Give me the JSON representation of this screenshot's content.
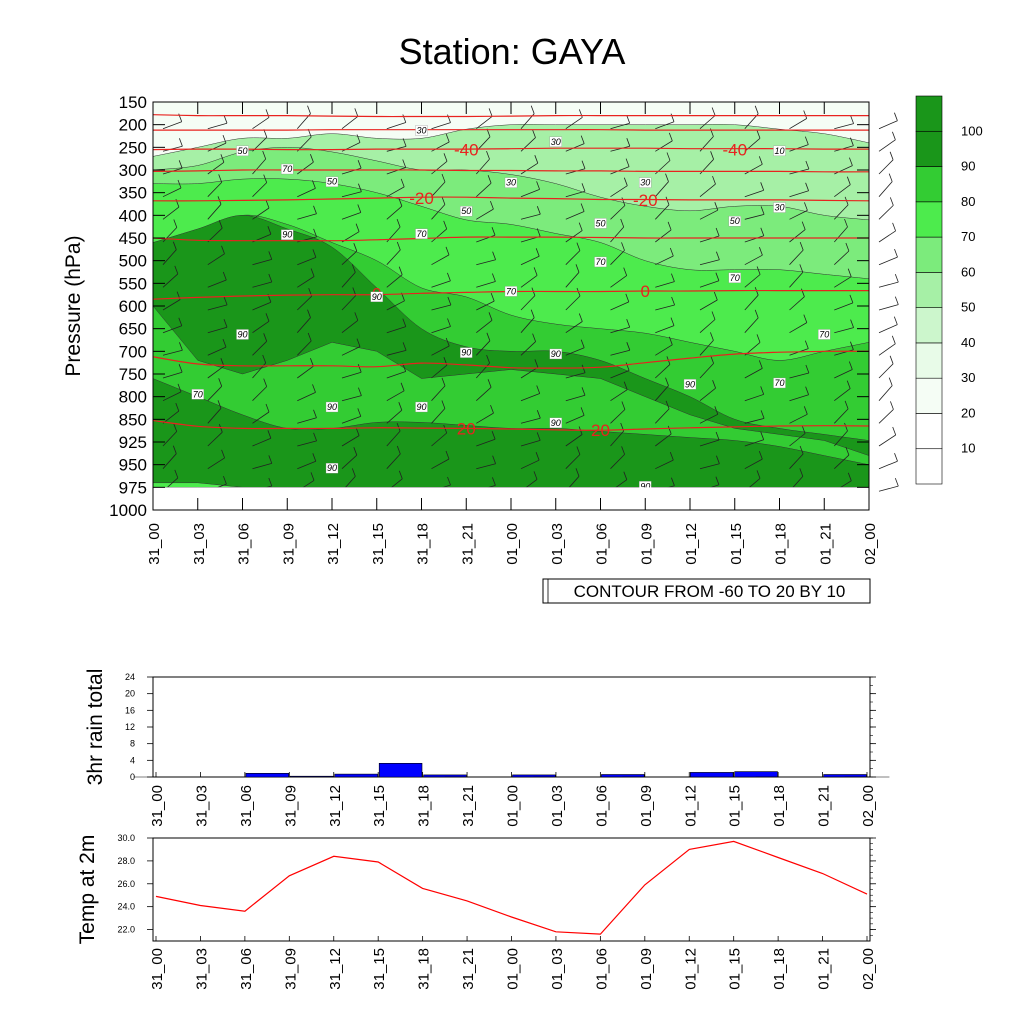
{
  "title": "Station: GAYA",
  "colors": {
    "temp_contour": "#e8231f",
    "rain_bar": "#0000ff",
    "temp_line": "#ff0000",
    "rh_levels": [
      "#ffffff",
      "#ffffff",
      "#f5fdf5",
      "#e8fbe8",
      "#ccf6cc",
      "#a6f0a6",
      "#7ceb7c",
      "#4deb4d",
      "#33cc33",
      "#1a961a"
    ]
  },
  "time_labels": [
    "31_00",
    "31_03",
    "31_06",
    "31_09",
    "31_12",
    "31_15",
    "31_18",
    "31_21",
    "01_00",
    "01_03",
    "01_06",
    "01_09",
    "01_12",
    "01_15",
    "01_18",
    "01_21",
    "02_00"
  ],
  "chart_data": [
    {
      "type": "heatmap",
      "name": "pressure-time cross section",
      "ylabel": "Pressure (hPa)",
      "pressure_levels": [
        150,
        200,
        250,
        300,
        350,
        400,
        450,
        500,
        550,
        600,
        650,
        700,
        750,
        800,
        850,
        925,
        950,
        975,
        1000
      ],
      "x": [
        "31_00",
        "31_03",
        "31_06",
        "31_09",
        "31_12",
        "31_15",
        "31_18",
        "31_21",
        "01_00",
        "01_03",
        "01_06",
        "01_09",
        "01_12",
        "01_15",
        "01_18",
        "01_21",
        "02_00"
      ],
      "fill_variable": "relative humidity (%)",
      "colorbar": {
        "levels": [
          10,
          20,
          30,
          40,
          50,
          60,
          70,
          80,
          90,
          100
        ]
      },
      "rh_regions": [
        {
          "level": 60,
          "top": [
            270,
            250,
            230,
            230,
            220,
            230,
            230,
            210,
            200,
            200,
            200,
            200,
            200,
            200,
            210,
            220,
            240
          ],
          "bottom": [
            975,
            975,
            975,
            975,
            975,
            975,
            975,
            975,
            975,
            975,
            975,
            975,
            975,
            975,
            975,
            975,
            975
          ]
        },
        {
          "level": 70,
          "top": [
            300,
            290,
            260,
            250,
            260,
            280,
            300,
            300,
            310,
            330,
            360,
            380,
            390,
            380,
            380,
            400,
            410
          ],
          "bottom": [
            975,
            975,
            975,
            975,
            975,
            975,
            975,
            975,
            975,
            975,
            975,
            975,
            975,
            975,
            975,
            975,
            975
          ]
        },
        {
          "level": 80,
          "top": [
            330,
            330,
            320,
            320,
            330,
            350,
            380,
            410,
            420,
            440,
            460,
            500,
            520,
            520,
            520,
            530,
            540
          ],
          "bottom": [
            975,
            975,
            975,
            975,
            975,
            975,
            975,
            975,
            975,
            975,
            975,
            975,
            975,
            975,
            975,
            975,
            975
          ]
        },
        {
          "level": 90,
          "top": [
            460,
            440,
            400,
            420,
            460,
            500,
            560,
            580,
            620,
            640,
            650,
            660,
            680,
            700,
            720,
            700,
            680
          ],
          "bottom": [
            970,
            960,
            960,
            950,
            950,
            950,
            960,
            975,
            975,
            975,
            975,
            975,
            975,
            975,
            975,
            975,
            975
          ]
        },
        {
          "level": 100,
          "top": [
            460,
            430,
            400,
            430,
            470,
            560,
            650,
            690,
            700,
            700,
            720,
            760,
            800,
            850,
            880,
            900,
            920
          ],
          "bottom": [
            600,
            720,
            750,
            720,
            680,
            700,
            760,
            750,
            740,
            750,
            760,
            800,
            840,
            880,
            900,
            920,
            940
          ]
        },
        {
          "level": 100,
          "top": [
            760,
            800,
            840,
            880,
            880,
            860,
            860,
            870,
            880,
            880,
            890,
            900,
            910,
            920,
            930,
            940,
            950
          ],
          "bottom": [
            970,
            970,
            975,
            975,
            975,
            975,
            975,
            975,
            975,
            975,
            975,
            975,
            975,
            975,
            975,
            975,
            975
          ]
        }
      ],
      "temperature_contours": [
        {
          "value": -40,
          "pressure": [
            255,
            254,
            254,
            255,
            255,
            254,
            254,
            254,
            253,
            252,
            252,
            252,
            253,
            253,
            253,
            254,
            254
          ]
        },
        {
          "value": -20,
          "pressure": [
            368,
            368,
            367,
            366,
            364,
            362,
            360,
            360,
            362,
            363,
            365,
            365,
            366,
            366,
            366,
            367,
            368
          ]
        },
        {
          "value": 0,
          "pressure": [
            585,
            581,
            578,
            576,
            575,
            575,
            572,
            570,
            568,
            568,
            568,
            567,
            567,
            566,
            566,
            566,
            566
          ]
        },
        {
          "value": 20,
          "pressure": [
            854,
            873,
            880,
            880,
            880,
            878,
            879,
            880,
            882,
            885,
            886,
            882,
            878,
            875,
            872,
            871,
            872
          ]
        },
        {
          "value": null,
          "pressure": [
            178,
            180,
            180,
            180,
            181,
            182,
            182,
            182,
            181,
            180,
            180,
            180,
            180,
            180,
            180,
            180,
            180
          ]
        },
        {
          "value": null,
          "pressure": [
            212,
            212,
            212,
            212,
            211,
            211,
            211,
            211,
            211,
            211,
            211,
            212,
            212,
            212,
            212,
            212,
            212
          ]
        },
        {
          "value": null,
          "pressure": [
            303,
            302,
            300,
            300,
            300,
            300,
            300,
            301,
            301,
            302,
            302,
            303,
            303,
            303,
            303,
            304,
            304
          ]
        },
        {
          "value": null,
          "pressure": [
            450,
            455,
            456,
            456,
            456,
            454,
            451,
            448,
            448,
            448,
            449,
            450,
            450,
            450,
            450,
            450,
            450
          ]
        },
        {
          "value": null,
          "pressure": [
            712,
            728,
            732,
            732,
            732,
            734,
            726,
            730,
            736,
            737,
            735,
            725,
            715,
            706,
            702,
            700,
            700
          ]
        }
      ],
      "contour_labels": [
        {
          "text": "-40",
          "x": "31_21",
          "p": 255,
          "kind": "temp"
        },
        {
          "text": "-40",
          "x": "01_15",
          "p": 255,
          "kind": "temp"
        },
        {
          "text": "-20",
          "x": "31_18",
          "p": 362,
          "kind": "temp"
        },
        {
          "text": "-20",
          "x": "01_09",
          "p": 366,
          "kind": "temp"
        },
        {
          "text": "0",
          "x": "31_15",
          "p": 572,
          "kind": "temp"
        },
        {
          "text": "0",
          "x": "01_09",
          "p": 567,
          "kind": "temp"
        },
        {
          "text": "20",
          "x": "31_21",
          "p": 880,
          "kind": "temp"
        },
        {
          "text": "20",
          "x": "01_06",
          "p": 886,
          "kind": "temp"
        },
        {
          "text": "30",
          "x": "31_18",
          "p": 215,
          "kind": "rh"
        },
        {
          "text": "30",
          "x": "01_03",
          "p": 240,
          "kind": "rh"
        },
        {
          "text": "10",
          "x": "01_18",
          "p": 260,
          "kind": "rh"
        },
        {
          "text": "30",
          "x": "01_00",
          "p": 330,
          "kind": "rh"
        },
        {
          "text": "30",
          "x": "01_09",
          "p": 330,
          "kind": "rh"
        },
        {
          "text": "30",
          "x": "01_18",
          "p": 385,
          "kind": "rh"
        },
        {
          "text": "50",
          "x": "31_06",
          "p": 260,
          "kind": "rh"
        },
        {
          "text": "50",
          "x": "31_12",
          "p": 328,
          "kind": "rh"
        },
        {
          "text": "50",
          "x": "31_21",
          "p": 393,
          "kind": "rh"
        },
        {
          "text": "50",
          "x": "01_06",
          "p": 420,
          "kind": "rh"
        },
        {
          "text": "50",
          "x": "01_15",
          "p": 415,
          "kind": "rh"
        },
        {
          "text": "70",
          "x": "31_09",
          "p": 300,
          "kind": "rh"
        },
        {
          "text": "70",
          "x": "31_18",
          "p": 443,
          "kind": "rh"
        },
        {
          "text": "70",
          "x": "01_06",
          "p": 505,
          "kind": "rh"
        },
        {
          "text": "70",
          "x": "01_15",
          "p": 540,
          "kind": "rh"
        },
        {
          "text": "70",
          "x": "01_00",
          "p": 570,
          "kind": "rh"
        },
        {
          "text": "70",
          "x": "01_21",
          "p": 665,
          "kind": "rh"
        },
        {
          "text": "70",
          "x": "01_18",
          "p": 772,
          "kind": "rh"
        },
        {
          "text": "70",
          "x": "31_03",
          "p": 797,
          "kind": "rh"
        },
        {
          "text": "90",
          "x": "31_09",
          "p": 445,
          "kind": "rh"
        },
        {
          "text": "90",
          "x": "31_15",
          "p": 582,
          "kind": "rh"
        },
        {
          "text": "90",
          "x": "31_06",
          "p": 665,
          "kind": "rh"
        },
        {
          "text": "90",
          "x": "31_21",
          "p": 705,
          "kind": "rh"
        },
        {
          "text": "90",
          "x": "01_03",
          "p": 708,
          "kind": "rh"
        },
        {
          "text": "90",
          "x": "01_12",
          "p": 775,
          "kind": "rh"
        },
        {
          "text": "90",
          "x": "31_12",
          "p": 825,
          "kind": "rh"
        },
        {
          "text": "90",
          "x": "31_18",
          "p": 825,
          "kind": "rh"
        },
        {
          "text": "90",
          "x": "01_03",
          "p": 865,
          "kind": "rh"
        },
        {
          "text": "90",
          "x": "31_12",
          "p": 955,
          "kind": "rh"
        },
        {
          "text": "90",
          "x": "01_09",
          "p": 975,
          "kind": "rh"
        }
      ],
      "annotation": "CONTOUR FROM -60 TO 20 BY 10"
    },
    {
      "type": "bar",
      "name": "rain",
      "ylabel": "3hr rain total",
      "ylim": [
        0,
        24
      ],
      "yticks": [
        0,
        4,
        8,
        12,
        16,
        20,
        24
      ],
      "categories": [
        "31_00",
        "31_03",
        "31_06",
        "31_09",
        "31_12",
        "31_15",
        "31_18",
        "31_21",
        "01_00",
        "01_03",
        "01_06",
        "01_09",
        "01_12",
        "01_15",
        "01_18",
        "01_21",
        "02_00"
      ],
      "values": [
        0,
        0,
        0.9,
        0.2,
        0.7,
        3.3,
        0.5,
        0,
        0.5,
        0,
        0.6,
        0,
        1.1,
        1.3,
        0,
        0.6,
        0
      ]
    },
    {
      "type": "line",
      "name": "temperature",
      "ylabel": "Temp at 2m",
      "ylim": [
        21,
        30
      ],
      "yticks": [
        "22.0",
        "24.0",
        "26.0",
        "28.0",
        "30.0"
      ],
      "x": [
        "31_00",
        "31_03",
        "31_06",
        "31_09",
        "31_12",
        "31_15",
        "31_18",
        "31_21",
        "01_00",
        "01_03",
        "01_06",
        "01_09",
        "01_12",
        "01_15",
        "01_18",
        "01_21",
        "02_00"
      ],
      "values": [
        24.9,
        24.1,
        23.6,
        26.7,
        28.4,
        27.9,
        25.6,
        24.5,
        23.1,
        21.8,
        21.6,
        25.9,
        29.0,
        29.7,
        28.3,
        26.9,
        25.1
      ]
    }
  ]
}
